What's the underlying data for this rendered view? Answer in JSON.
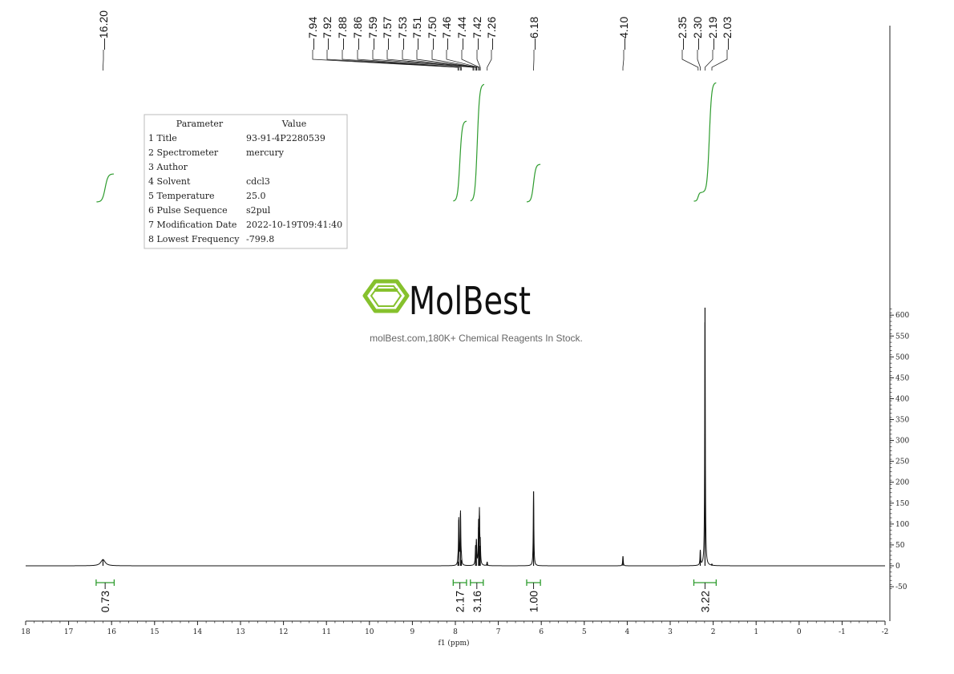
{
  "chart_data": {
    "type": "line",
    "xlabel": "f1 (ppm)",
    "xlim": [
      18,
      -2
    ],
    "ylim": [
      -55,
      620
    ],
    "x_ticks": [
      "18",
      "17",
      "16",
      "15",
      "14",
      "13",
      "12",
      "11",
      "10",
      "9",
      "8",
      "7",
      "6",
      "5",
      "4",
      "3",
      "2",
      "1",
      "0",
      "-1",
      "-2"
    ],
    "y_ticks": [
      "600",
      "550",
      "500",
      "450",
      "400",
      "350",
      "300",
      "250",
      "200",
      "150",
      "100",
      "50",
      "0",
      "-50"
    ],
    "peaks": [
      {
        "ppm": 16.2,
        "height": 15,
        "width": 0.06
      },
      {
        "ppm": 7.94,
        "height": 10,
        "width": 0.008
      },
      {
        "ppm": 7.92,
        "height": 110,
        "width": 0.008
      },
      {
        "ppm": 7.88,
        "height": 126,
        "width": 0.008
      },
      {
        "ppm": 7.86,
        "height": 14,
        "width": 0.008
      },
      {
        "ppm": 7.53,
        "height": 40,
        "width": 0.008
      },
      {
        "ppm": 7.51,
        "height": 57,
        "width": 0.008
      },
      {
        "ppm": 7.46,
        "height": 92,
        "width": 0.008
      },
      {
        "ppm": 7.44,
        "height": 120,
        "width": 0.008
      },
      {
        "ppm": 7.42,
        "height": 48,
        "width": 0.008
      },
      {
        "ppm": 7.26,
        "height": 9,
        "width": 0.008
      },
      {
        "ppm": 6.18,
        "height": 178,
        "width": 0.008
      },
      {
        "ppm": 4.1,
        "height": 23,
        "width": 0.008
      },
      {
        "ppm": 2.3,
        "height": 35,
        "width": 0.008
      },
      {
        "ppm": 2.19,
        "height": 618,
        "width": 0.008
      },
      {
        "ppm": 2.03,
        "height": 3,
        "width": 0.008
      }
    ],
    "peak_labels": [
      {
        "id": "p1",
        "text": "16.20",
        "ppm": 16.2
      },
      {
        "id": "p2",
        "text": "7.94",
        "ppm": 7.94
      },
      {
        "id": "p3",
        "text": "7.92",
        "ppm": 7.92
      },
      {
        "id": "p4",
        "text": "7.88",
        "ppm": 7.88
      },
      {
        "id": "p5",
        "text": "7.86",
        "ppm": 7.86
      },
      {
        "id": "p6",
        "text": "7.59",
        "ppm": 7.59
      },
      {
        "id": "p7",
        "text": "7.57",
        "ppm": 7.57
      },
      {
        "id": "p8",
        "text": "7.53",
        "ppm": 7.53
      },
      {
        "id": "p9",
        "text": "7.51",
        "ppm": 7.51
      },
      {
        "id": "p10",
        "text": "7.50",
        "ppm": 7.5
      },
      {
        "id": "p11",
        "text": "7.46",
        "ppm": 7.46
      },
      {
        "id": "p12",
        "text": "7.44",
        "ppm": 7.44
      },
      {
        "id": "p13",
        "text": "7.42",
        "ppm": 7.42
      },
      {
        "id": "p14",
        "text": "7.26",
        "ppm": 7.26
      },
      {
        "id": "p15",
        "text": "6.18",
        "ppm": 6.18
      },
      {
        "id": "p16",
        "text": "4.10",
        "ppm": 4.1
      },
      {
        "id": "p17",
        "text": "2.35",
        "ppm": 2.35
      },
      {
        "id": "p18",
        "text": "2.30",
        "ppm": 2.3
      },
      {
        "id": "p19",
        "text": "2.19",
        "ppm": 2.19
      },
      {
        "id": "p20",
        "text": "2.03",
        "ppm": 2.03
      }
    ],
    "integrals": [
      {
        "id": "i1",
        "value": "0.73",
        "from": 16.36,
        "to": 15.94
      },
      {
        "id": "i2",
        "value": "2.17",
        "from": 8.05,
        "to": 7.74
      },
      {
        "id": "i3",
        "value": "3.16",
        "from": 7.65,
        "to": 7.35
      },
      {
        "id": "i4",
        "value": "1.00",
        "from": 6.34,
        "to": 6.02
      },
      {
        "id": "i5",
        "value": "3.22",
        "from": 2.45,
        "to": 1.93
      }
    ]
  },
  "params_table": {
    "header": {
      "parameter": "Parameter",
      "value": "Value"
    },
    "rows": [
      {
        "label": "1 Title",
        "value": "93-91-4P2280539"
      },
      {
        "label": "2 Spectrometer",
        "value": "mercury"
      },
      {
        "label": "3 Author",
        "value": ""
      },
      {
        "label": "4 Solvent",
        "value": "cdcl3"
      },
      {
        "label": "5 Temperature",
        "value": "25.0"
      },
      {
        "label": "6 Pulse Sequence",
        "value": "s2pul"
      },
      {
        "label": "7 Modification Date",
        "value": "2022-10-19T09:41:40"
      },
      {
        "label": "8 Lowest Frequency",
        "value": "-799.8"
      }
    ]
  },
  "watermark": {
    "logo_text": "MolBest",
    "subtitle": "molBest.com,180K+ Chemical Reagents In Stock."
  },
  "colors": {
    "spectrum": "#111111",
    "integral": "#2e9c2e",
    "logo_green": "#86c12d"
  }
}
